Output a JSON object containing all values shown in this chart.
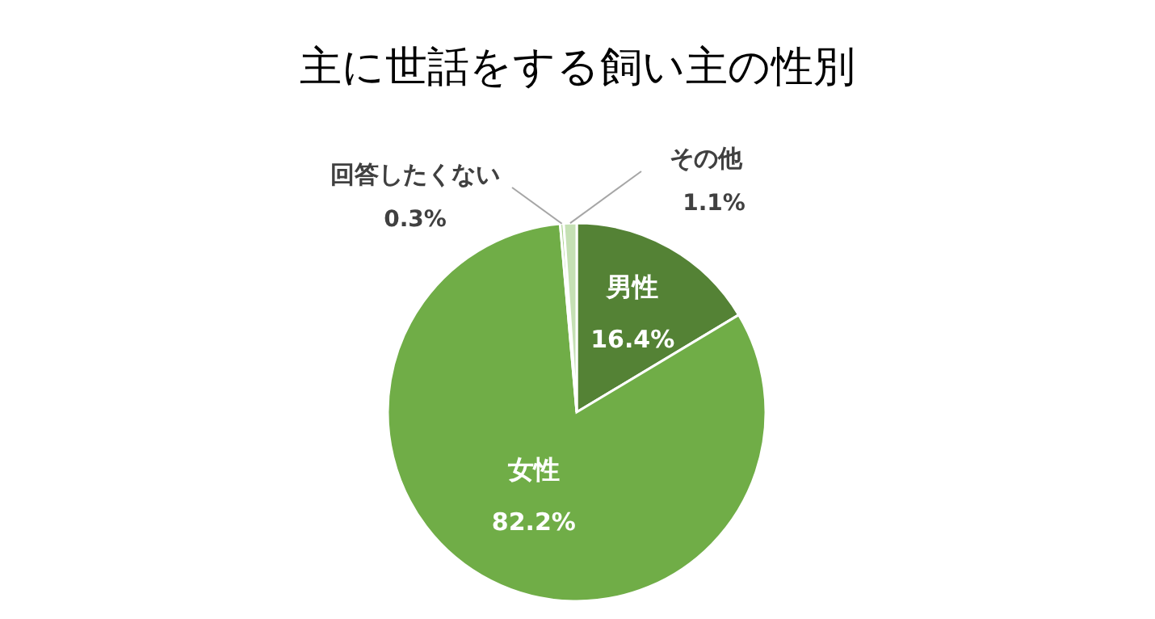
{
  "chart_data": {
    "type": "pie",
    "title": "主に世話をする飼い主の性別",
    "categories": [
      "男性",
      "女性",
      "回答したくない",
      "その他"
    ],
    "values": [
      16.4,
      82.2,
      0.3,
      1.1
    ],
    "value_labels": [
      "16.4%",
      "82.2%",
      "0.3%",
      "1.1%"
    ],
    "colors": [
      "#548235",
      "#70ad47",
      "#a9d18e",
      "#c5e0b4"
    ]
  }
}
